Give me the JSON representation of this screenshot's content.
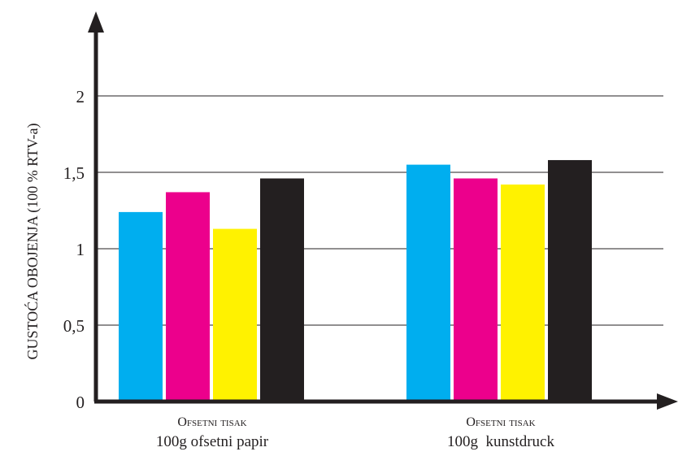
{
  "chart_data": {
    "type": "bar",
    "ylabel": "GUSTOĆA OBOJENJA (100 % RTV-a)",
    "ylim": [
      0,
      2.4
    ],
    "yticks": [
      0,
      0.5,
      1,
      1.5,
      2
    ],
    "ytick_labels": [
      "0",
      "0,5",
      "1",
      "1,5",
      "2"
    ],
    "grid": true,
    "legend": "none",
    "categories": [
      {
        "line1": "Ofsetni tisak",
        "line2": "100g ofsetni papir"
      },
      {
        "line1": "Ofsetni tisak",
        "line2": "100g  kunstdruck"
      }
    ],
    "series": [
      {
        "color": "#00aeef",
        "values": [
          1.24,
          1.55
        ]
      },
      {
        "color": "#ec008c",
        "values": [
          1.37,
          1.46
        ]
      },
      {
        "color": "#fff200",
        "values": [
          1.13,
          1.42
        ]
      },
      {
        "color": "#231f20",
        "values": [
          1.46,
          1.58
        ]
      }
    ]
  }
}
